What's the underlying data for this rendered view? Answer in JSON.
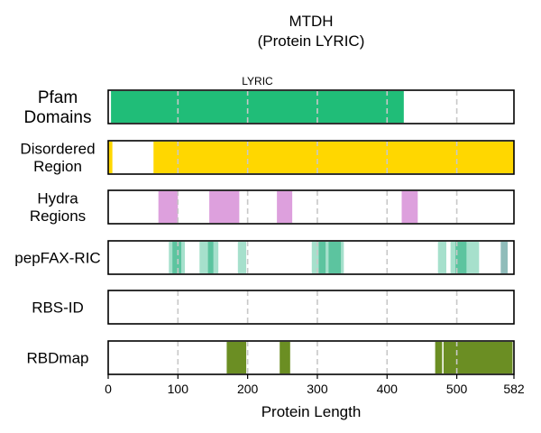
{
  "chart_data": {
    "type": "track",
    "title": "MTDH",
    "subtitle": "(Protein LYRIC)",
    "xlabel": "Protein Length",
    "xlim": [
      0,
      582
    ],
    "xticks": [
      0,
      100,
      200,
      300,
      400,
      500,
      582
    ],
    "gridlines": [
      100,
      200,
      300,
      400,
      500
    ],
    "tracks": [
      {
        "label": "Pfam\nDomains",
        "regions": [
          {
            "start": 4,
            "end": 424,
            "color": "#20bd78",
            "label": "LYRIC"
          }
        ]
      },
      {
        "label": "Disordered\nRegion",
        "regions": [
          {
            "start": 0,
            "end": 6,
            "color": "#ffd700"
          },
          {
            "start": 65,
            "end": 582,
            "color": "#ffd700"
          }
        ]
      },
      {
        "label": "Hydra\nRegions",
        "regions": [
          {
            "start": 72,
            "end": 100,
            "color": "#dda0dd"
          },
          {
            "start": 145,
            "end": 188,
            "color": "#dda0dd"
          },
          {
            "start": 242,
            "end": 264,
            "color": "#dda0dd"
          },
          {
            "start": 421,
            "end": 444,
            "color": "#dda0dd"
          }
        ]
      },
      {
        "label": "pepFAX-RIC",
        "regions": [
          {
            "start": 87,
            "end": 92,
            "color": "#5cc7a3",
            "opacity": 0.55
          },
          {
            "start": 92,
            "end": 105,
            "color": "#3fba8e",
            "opacity": 0.85
          },
          {
            "start": 105,
            "end": 110,
            "color": "#5cc7a3",
            "opacity": 0.55
          },
          {
            "start": 131,
            "end": 143,
            "color": "#5cc7a3",
            "opacity": 0.55
          },
          {
            "start": 143,
            "end": 151,
            "color": "#3fba8e",
            "opacity": 0.85
          },
          {
            "start": 151,
            "end": 158,
            "color": "#5cc7a3",
            "opacity": 0.55
          },
          {
            "start": 186,
            "end": 198,
            "color": "#5cc7a3",
            "opacity": 0.55
          },
          {
            "start": 292,
            "end": 302,
            "color": "#5cc7a3",
            "opacity": 0.55
          },
          {
            "start": 302,
            "end": 312,
            "color": "#3fba8e",
            "opacity": 0.85
          },
          {
            "start": 312,
            "end": 316,
            "color": "#5cc7a3",
            "opacity": 0.55
          },
          {
            "start": 316,
            "end": 334,
            "color": "#3fba8e",
            "opacity": 0.85
          },
          {
            "start": 334,
            "end": 338,
            "color": "#5cc7a3",
            "opacity": 0.55
          },
          {
            "start": 473,
            "end": 485,
            "color": "#5cc7a3",
            "opacity": 0.55
          },
          {
            "start": 491,
            "end": 498,
            "color": "#5cc7a3",
            "opacity": 0.55
          },
          {
            "start": 498,
            "end": 514,
            "color": "#3fba8e",
            "opacity": 0.85
          },
          {
            "start": 514,
            "end": 532,
            "color": "#5cc7a3",
            "opacity": 0.55
          },
          {
            "start": 563,
            "end": 573,
            "color": "#6aa6a3",
            "opacity": 0.75
          }
        ]
      },
      {
        "label": "RBS-ID",
        "regions": []
      },
      {
        "label": "RBDmap",
        "regions": [
          {
            "start": 170,
            "end": 198,
            "color": "#6b8e23"
          },
          {
            "start": 246,
            "end": 261,
            "color": "#6b8e23"
          },
          {
            "start": 469,
            "end": 479,
            "color": "#6b8e23"
          },
          {
            "start": 481,
            "end": 580,
            "color": "#6b8e23"
          }
        ]
      }
    ]
  }
}
